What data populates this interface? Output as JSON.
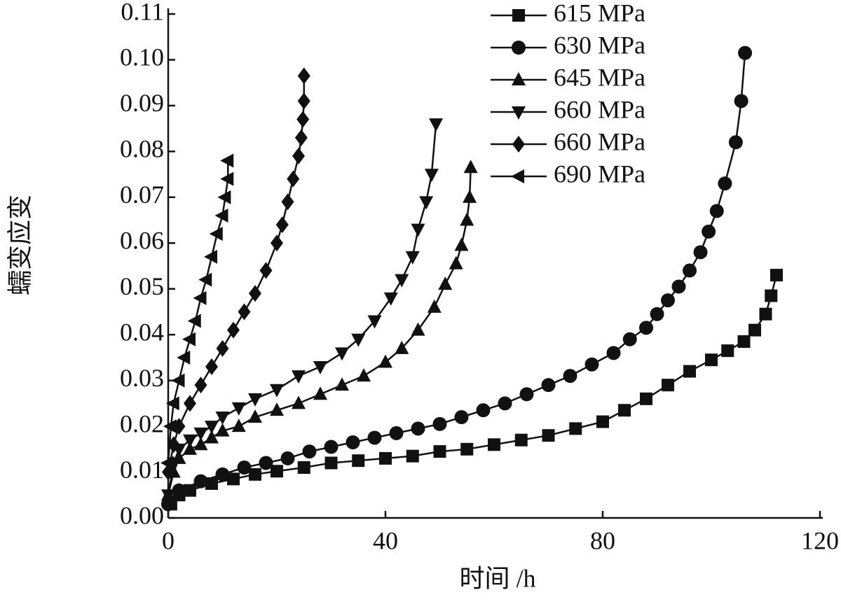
{
  "chart_data": {
    "type": "line",
    "xlabel": "时间 /h",
    "ylabel": "蠕变应变",
    "xlim": [
      0,
      120
    ],
    "xticks": [
      0,
      40,
      80,
      120
    ],
    "ylim": [
      0,
      0.11
    ],
    "yticks": [
      {
        "value": 0,
        "label": "0.00"
      },
      {
        "value": 0.01,
        "label": "0.01"
      },
      {
        "value": 0.02,
        "label": "0.02"
      },
      {
        "value": 0.03,
        "label": "0.03"
      },
      {
        "value": 0.04,
        "label": "0.04"
      },
      {
        "value": 0.05,
        "label": "0.05"
      },
      {
        "value": 0.06,
        "label": "0.06"
      },
      {
        "value": 0.07,
        "label": "0.07"
      },
      {
        "value": 0.08,
        "label": "0.08"
      },
      {
        "value": 0.09,
        "label": "0.09"
      },
      {
        "value": 0.1,
        "label": "0.10"
      },
      {
        "value": 0.11,
        "label": "0.11"
      }
    ],
    "legend": "upper right",
    "series": [
      {
        "name": "615 MPa",
        "color": "#111111",
        "marker": "square",
        "x": [
          0.5,
          2,
          4,
          8,
          12,
          16,
          20,
          25,
          30,
          35,
          40,
          45,
          50,
          55,
          60,
          65,
          70,
          75,
          80,
          84,
          88,
          92,
          96,
          100,
          103,
          106,
          108,
          110,
          111,
          112
        ],
        "values": [
          0.003,
          0.005,
          0.006,
          0.0075,
          0.0085,
          0.0095,
          0.0102,
          0.011,
          0.012,
          0.0125,
          0.013,
          0.0135,
          0.0145,
          0.015,
          0.016,
          0.017,
          0.018,
          0.0195,
          0.021,
          0.0235,
          0.026,
          0.029,
          0.032,
          0.0345,
          0.0365,
          0.0385,
          0.041,
          0.0445,
          0.0485,
          0.053
        ]
      },
      {
        "name": "630 MPa",
        "color": "#111111",
        "marker": "circle",
        "x": [
          0,
          2,
          6,
          10,
          14,
          18,
          22,
          26,
          30,
          34,
          38,
          42,
          46,
          50,
          54,
          58,
          62,
          66,
          70,
          74,
          78,
          82,
          85,
          88,
          90,
          92,
          94,
          96,
          98,
          99.5,
          101,
          102.5,
          104.5,
          105.5,
          106.2
        ],
        "values": [
          0.003,
          0.006,
          0.008,
          0.0095,
          0.011,
          0.012,
          0.013,
          0.0145,
          0.0155,
          0.0165,
          0.0175,
          0.0185,
          0.0195,
          0.0205,
          0.022,
          0.0235,
          0.025,
          0.027,
          0.029,
          0.031,
          0.0335,
          0.036,
          0.039,
          0.0415,
          0.0445,
          0.0475,
          0.0505,
          0.054,
          0.058,
          0.0625,
          0.067,
          0.073,
          0.082,
          0.091,
          0.1015
        ]
      },
      {
        "name": "645 MPa",
        "color": "#111111",
        "marker": "triangle-up",
        "x": [
          0,
          1,
          2,
          4,
          6,
          8,
          10,
          13,
          16,
          20,
          24,
          28,
          32,
          36,
          40,
          43,
          46,
          49,
          51,
          53,
          54,
          55,
          55.5,
          55.7
        ],
        "values": [
          0.005,
          0.01,
          0.013,
          0.015,
          0.016,
          0.0175,
          0.019,
          0.02,
          0.022,
          0.0235,
          0.025,
          0.027,
          0.029,
          0.031,
          0.034,
          0.037,
          0.041,
          0.046,
          0.051,
          0.0555,
          0.0595,
          0.065,
          0.07,
          0.0765
        ]
      },
      {
        "name": "660 MPa",
        "color": "#111111",
        "marker": "triangle-down",
        "x": [
          0,
          1,
          2,
          4,
          6,
          8,
          10,
          13,
          16,
          20,
          24,
          28,
          32,
          35,
          38,
          41,
          43,
          45,
          46,
          47.5,
          48.5,
          49.3
        ],
        "values": [
          0.005,
          0.012,
          0.015,
          0.017,
          0.0185,
          0.02,
          0.022,
          0.024,
          0.026,
          0.028,
          0.031,
          0.033,
          0.036,
          0.039,
          0.043,
          0.048,
          0.052,
          0.057,
          0.063,
          0.069,
          0.075,
          0.086
        ]
      },
      {
        "name": "660 MPa",
        "color": "#111111",
        "marker": "diamond",
        "x": [
          0,
          1,
          2,
          4,
          6,
          8,
          10,
          12,
          14,
          16,
          18,
          20,
          21,
          22,
          23,
          24,
          24.5,
          24.8,
          25,
          25
        ],
        "values": [
          0.01,
          0.016,
          0.02,
          0.025,
          0.029,
          0.033,
          0.037,
          0.041,
          0.045,
          0.049,
          0.054,
          0.06,
          0.064,
          0.069,
          0.074,
          0.079,
          0.083,
          0.087,
          0.091,
          0.0965
        ]
      },
      {
        "name": "690 MPa",
        "color": "#111111",
        "marker": "triangle-left",
        "x": [
          0,
          0.5,
          1,
          2,
          3,
          4,
          5,
          6,
          7,
          8,
          9,
          10,
          10.5,
          11,
          11
        ],
        "values": [
          0.012,
          0.02,
          0.025,
          0.03,
          0.035,
          0.039,
          0.043,
          0.048,
          0.052,
          0.057,
          0.062,
          0.066,
          0.07,
          0.074,
          0.078
        ]
      }
    ]
  }
}
